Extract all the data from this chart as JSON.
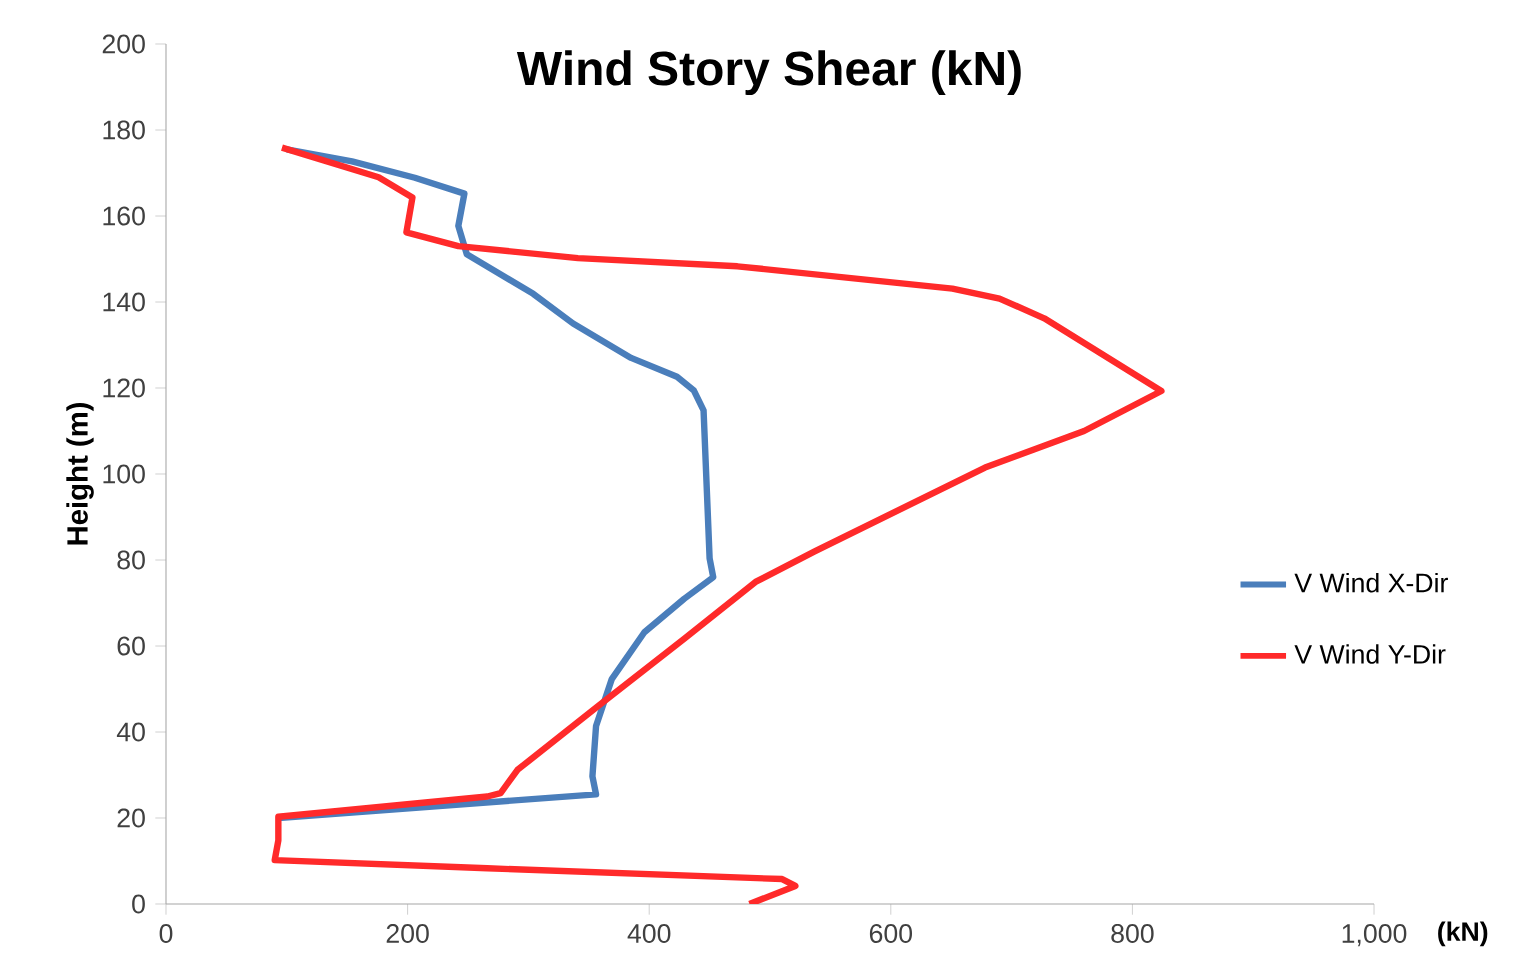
{
  "chart_data": {
    "type": "line",
    "title": "Wind Story Shear (kN)",
    "xlabel": "(kN)",
    "ylabel": "Height (m)",
    "xlim": [
      0,
      1000
    ],
    "ylim": [
      0,
      200
    ],
    "xticks": [
      0,
      200,
      400,
      600,
      800,
      {
        "value": 1000,
        "label": "1,000"
      }
    ],
    "yticks": [
      0,
      20,
      40,
      60,
      80,
      100,
      120,
      140,
      160,
      180,
      200
    ],
    "grid": false,
    "legend": "right",
    "marker": "none",
    "line_style": "solid",
    "series": [
      {
        "name": "V Wind X-Dir",
        "color": "#4a7ebb",
        "x": [
          93,
          356,
          353,
          356,
          369,
          396,
          429,
          453,
          450,
          445,
          437,
          423,
          385,
          337,
          304,
          249,
          242,
          247,
          206,
          154,
          100
        ],
        "values": [
          20,
          25.5,
          29.7,
          41.4,
          52.3,
          63.2,
          71,
          76,
          80.4,
          114.8,
          119.4,
          122.6,
          127,
          135,
          141.9,
          151.1,
          157.7,
          165.2,
          168.9,
          172.7,
          175.5
        ]
      },
      {
        "name": "V Wind Y-Dir",
        "color": "#ff2a2a",
        "x": [
          483,
          521,
          510,
          266,
          90,
          93,
          93,
          266,
          277,
          291,
          358,
          429,
          488,
          537,
          678,
          760,
          824,
          727,
          690,
          651,
          473,
          341,
          242,
          199,
          204,
          176,
          96
        ],
        "values": [
          0,
          4.2,
          5.8,
          8.3,
          10.2,
          14.8,
          20.3,
          25,
          25.8,
          31.2,
          46.1,
          61.7,
          74.9,
          82,
          101.5,
          110,
          119.3,
          136.2,
          140.8,
          143.1,
          148.3,
          150.2,
          153,
          156.2,
          164.3,
          169,
          175.9
        ]
      }
    ]
  }
}
